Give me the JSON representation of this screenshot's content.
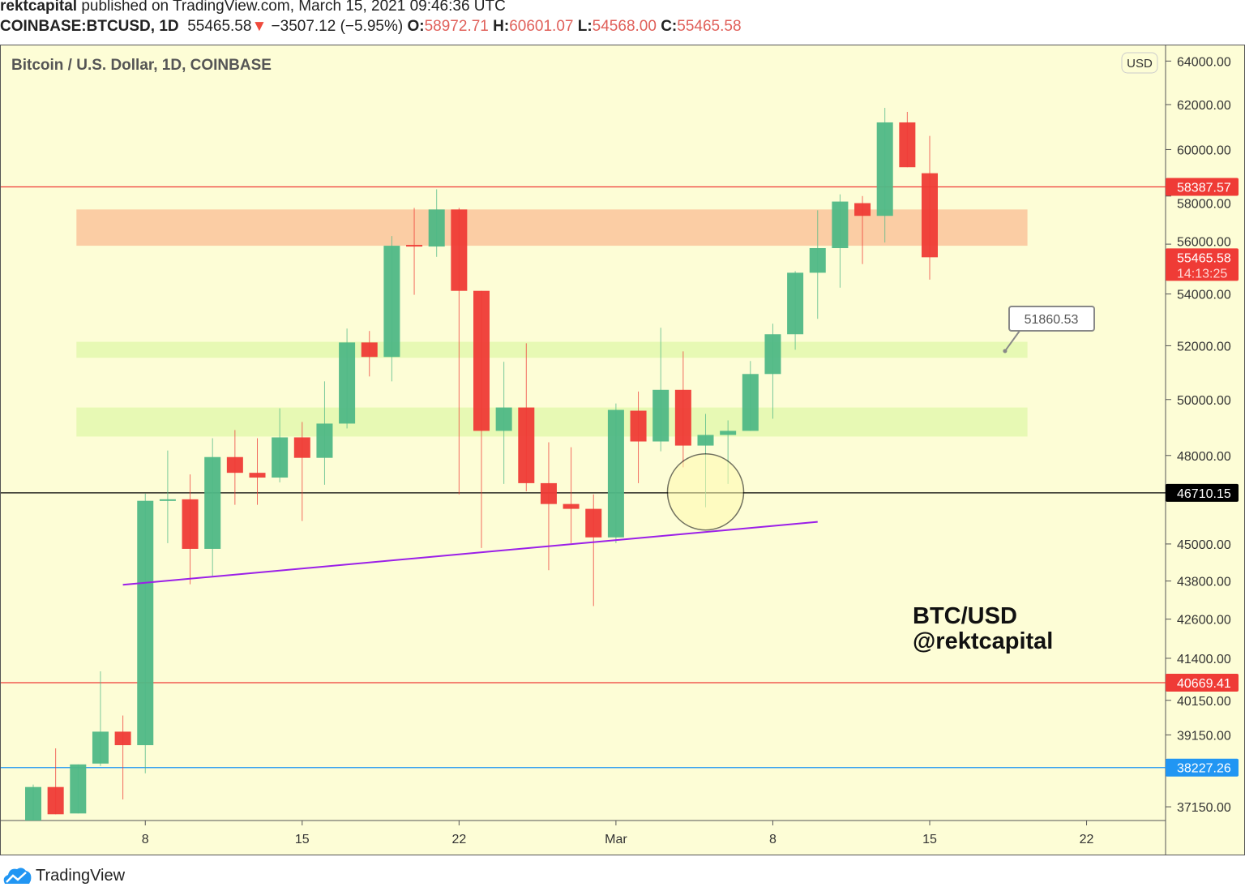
{
  "header": {
    "author": "rektcapital",
    "published": "published on TradingView.com, March 15, 2021 09:46:36 UTC",
    "symbol": "COINBASE:BTCUSD, 1D",
    "last": "55465.58",
    "change": "−3507.12 (−5.95%)",
    "o_label": "O:",
    "o": "58972.71",
    "h_label": "H:",
    "h": "60601.07",
    "l_label": "L:",
    "l": "54568.00",
    "c_label": "C:",
    "c": "55465.58"
  },
  "footer": {
    "brand": "TradingView"
  },
  "stamp": {
    "line1": "BTC/USD",
    "line2": "@rektcapital"
  },
  "colors": {
    "bg": "#fdfdd6",
    "up": "#4fb886",
    "down": "#ef3b36",
    "purple": "#9b1fe8",
    "blue": "#2196f3"
  },
  "chart_data": {
    "type": "candlestick",
    "title": "Bitcoin / U.S. Dollar, 1D, COINBASE",
    "currency": "USD",
    "y_scale": "log",
    "ylim": [
      36700,
      64500
    ],
    "y_ticks": [
      "64000.00",
      "62000.00",
      "60000.00",
      "58000.00",
      "56000.00",
      "54000.00",
      "52000.00",
      "50000.00",
      "48000.00",
      "45000.00",
      "43800.00",
      "42600.00",
      "41400.00",
      "40150.00",
      "39150.00",
      "37150.00"
    ],
    "x_ticks": [
      {
        "date": "2021-02-08",
        "label": "8"
      },
      {
        "date": "2021-02-15",
        "label": "15"
      },
      {
        "date": "2021-02-22",
        "label": "22"
      },
      {
        "date": "2021-03-01",
        "label": "Mar"
      },
      {
        "date": "2021-03-08",
        "label": "8"
      },
      {
        "date": "2021-03-15",
        "label": "15"
      },
      {
        "date": "2021-03-22",
        "label": "22"
      }
    ],
    "x_start": "2021-02-03",
    "candles": [
      [
        "2021-02-03",
        36770,
        37757,
        36700,
        37690
      ],
      [
        "2021-02-04",
        37690,
        38768,
        36948,
        36948
      ],
      [
        "2021-02-05",
        36970,
        38317,
        36970,
        38317
      ],
      [
        "2021-02-06",
        38340,
        41008,
        38272,
        39243
      ],
      [
        "2021-02-07",
        39243,
        39707,
        37350,
        38858
      ],
      [
        "2021-02-08",
        38858,
        46680,
        38070,
        46439
      ],
      [
        "2021-02-09",
        46439,
        48174,
        45027,
        46490
      ],
      [
        "2021-02-10",
        46490,
        47342,
        43698,
        44840
      ],
      [
        "2021-02-11",
        44840,
        48609,
        43959,
        47945
      ],
      [
        "2021-02-12",
        47945,
        48899,
        46304,
        47397
      ],
      [
        "2021-02-13",
        47397,
        48609,
        46304,
        47233
      ],
      [
        "2021-02-14",
        47233,
        49681,
        47068,
        48638
      ],
      [
        "2021-02-15",
        48638,
        49188,
        45760,
        47918
      ],
      [
        "2021-02-16",
        47918,
        50667,
        46986,
        49130
      ],
      [
        "2021-02-17",
        49130,
        52656,
        48956,
        52125
      ],
      [
        "2021-02-18",
        52125,
        52563,
        50848,
        51576
      ],
      [
        "2021-02-19",
        51576,
        56333,
        50667,
        55935
      ],
      [
        "2021-02-20",
        55968,
        57500,
        53969,
        55903
      ],
      [
        "2021-02-21",
        55903,
        58286,
        55483,
        57434
      ],
      [
        "2021-02-22",
        57434,
        57500,
        46656,
        54125
      ],
      [
        "2021-02-23",
        54125,
        54125,
        44867,
        48870
      ],
      [
        "2021-02-24",
        48870,
        51394,
        47013,
        49710
      ],
      [
        "2021-02-25",
        49710,
        52094,
        46766,
        47041
      ],
      [
        "2021-02-26",
        47041,
        48464,
        44147,
        46331
      ],
      [
        "2021-02-27",
        46331,
        48290,
        45027,
        46168
      ],
      [
        "2021-02-28",
        46168,
        46656,
        43008,
        45217
      ],
      [
        "2021-03-01",
        45217,
        49855,
        45027,
        49623
      ],
      [
        "2021-03-02",
        49594,
        50292,
        47041,
        48493
      ],
      [
        "2021-03-03",
        48493,
        52688,
        48145,
        50355
      ],
      [
        "2021-03-04",
        50355,
        51788,
        47589,
        48348
      ],
      [
        "2021-03-05",
        48348,
        49478,
        46222,
        48725
      ],
      [
        "2021-03-06",
        48725,
        49246,
        47013,
        48870
      ],
      [
        "2021-03-07",
        48870,
        51424,
        48870,
        50939
      ],
      [
        "2021-03-08",
        50939,
        52844,
        49304,
        52438
      ],
      [
        "2021-03-09",
        52438,
        54909,
        51849,
        54844
      ],
      [
        "2021-03-10",
        54844,
        57400,
        53031,
        55838
      ],
      [
        "2021-03-11",
        55838,
        58071,
        54250,
        57767
      ],
      [
        "2021-03-12",
        57700,
        58000,
        55192,
        57167
      ],
      [
        "2021-03-13",
        57167,
        61854,
        56067,
        61200
      ],
      [
        "2021-03-14",
        61200,
        61672,
        59232,
        59232
      ],
      [
        "2021-03-15",
        58972.71,
        60601.07,
        54568.0,
        55465.58
      ]
    ],
    "horizontal_lines": [
      {
        "price": 58387.57,
        "label": "58387.57",
        "color": "#ef3b36",
        "label_bg": "#ef3b36"
      },
      {
        "price": 46710.15,
        "label": "46710.15",
        "color": "#000000",
        "label_bg": "#000000"
      },
      {
        "price": 40669.41,
        "label": "40669.41",
        "color": "#ef3b36",
        "label_bg": "#ef3b36"
      },
      {
        "price": 38227.26,
        "label": "38227.26",
        "color": "#2196f3",
        "label_bg": "#2196f3"
      }
    ],
    "zones": [
      {
        "from": "2021-02-05",
        "to": "2021-03-19",
        "top": 57434,
        "bottom": 55935,
        "color": "#fbc89e"
      },
      {
        "from": "2021-02-05",
        "to": "2021-03-19",
        "top": 52150,
        "bottom": 51545,
        "color": "#e4f8b0"
      },
      {
        "from": "2021-02-05",
        "to": "2021-03-19",
        "top": 49710,
        "bottom": 48667,
        "color": "#e4f8b0"
      }
    ],
    "trendline": {
      "start": {
        "date": "2021-02-07",
        "price": 43680
      },
      "end": {
        "date": "2021-03-10",
        "price": 45733
      },
      "color": "#9b1fe8"
    },
    "circle": {
      "date": "2021-03-05",
      "price": 46740
    },
    "callout": {
      "label": "51860.53",
      "anchor": {
        "date": "2021-03-18",
        "price": 51800
      }
    },
    "last_price": {
      "label": "55465.58",
      "countdown": "14:13:25",
      "price": 55465.58
    }
  }
}
